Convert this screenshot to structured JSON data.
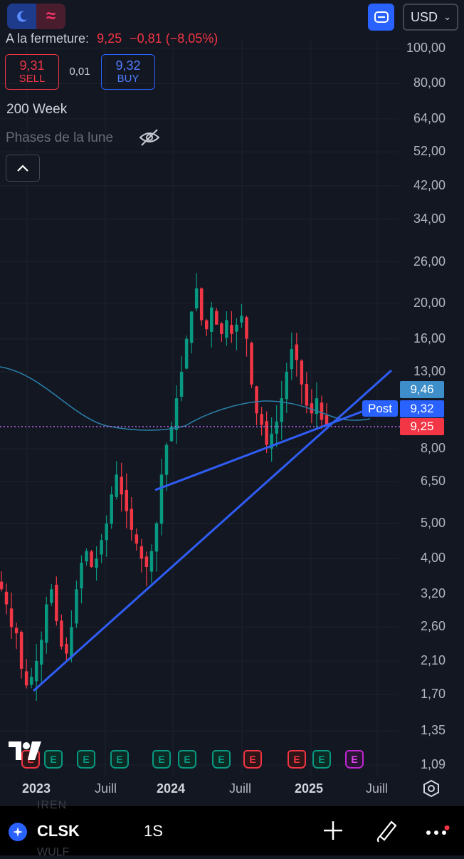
{
  "header": {
    "moon_icon": "moon-icon",
    "wave_icon": "wave-icon",
    "currency": "USD",
    "close_label": "A la fermeture:",
    "close_price": "9,25",
    "close_change": "−0,81",
    "close_change_pct": "(−8,05%)"
  },
  "trade": {
    "sell_price": "9,31",
    "sell_label": "SELL",
    "spread": "0,01",
    "buy_price": "9,32",
    "buy_label": "BUY"
  },
  "indicators": {
    "ma_label": "200 Week",
    "moon_phases_label": "Phases de la lune"
  },
  "price_axis": {
    "labels": [
      "100,00",
      "80,00",
      "64,00",
      "52,00",
      "42,00",
      "34,00",
      "26,00",
      "20,00",
      "16,00",
      "13,00",
      "8,00",
      "6,50",
      "5,00",
      "4,00",
      "3,20",
      "2,60",
      "2,10",
      "1,70",
      "1,35",
      "1,09"
    ],
    "tags": {
      "ma_value": "9,46",
      "post_label": "Post",
      "post_price": "9,32",
      "last_price": "9,25"
    },
    "scale": "log"
  },
  "time_axis": {
    "labels": [
      "2023",
      "Juill",
      "2024",
      "Juill",
      "2025",
      "Juill"
    ]
  },
  "events": {
    "earnings_letter": "E",
    "badges": [
      "red",
      "green",
      "green",
      "green",
      "green",
      "green",
      "green",
      "red",
      "red",
      "green",
      "purple"
    ]
  },
  "colors": {
    "up": "#089981",
    "down": "#f23645",
    "trendline": "#2f5df5",
    "ma_line": "#2a7fa8",
    "accent": "#2962ff"
  },
  "bottom_bar": {
    "symbol": "CLSK",
    "interval": "1S",
    "ghost_top": "IREN",
    "ghost_bottom": "WULF"
  },
  "chart_data": {
    "type": "candlestick",
    "x_start": "2022-11",
    "x_end": "2025-08",
    "scale": "log",
    "ylim": [
      1.0,
      110
    ],
    "last_close": 9.25,
    "ma_200_week": 9.46,
    "approx_weekly_closes": [
      3.3,
      3.0,
      2.6,
      2.5,
      2.0,
      1.8,
      1.9,
      2.1,
      2.4,
      3.0,
      3.3,
      2.7,
      2.3,
      2.2,
      2.6,
      3.3,
      3.9,
      4.2,
      3.8,
      4.0,
      4.5,
      5.0,
      6.0,
      6.8,
      6.0,
      5.4,
      4.8,
      4.4,
      4.0,
      3.8,
      4.2,
      5.0,
      6.8,
      8.2,
      9.2,
      11.0,
      13.0,
      16.0,
      19.0,
      22.0,
      18.0,
      17.0,
      19.5,
      17.5,
      16.5,
      18.0,
      16.5,
      17.5,
      18.5,
      16.0,
      12.0,
      10.0,
      9.3,
      8.2,
      8.8,
      9.5,
      11.0,
      13.0,
      15.0,
      14.0,
      12.0,
      10.5,
      10.0,
      11.0,
      9.6,
      9.25
    ]
  }
}
